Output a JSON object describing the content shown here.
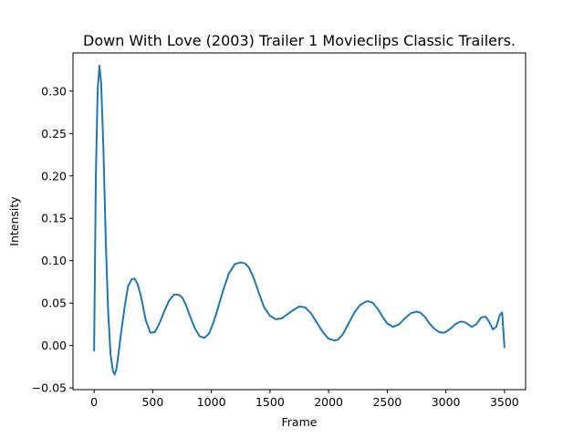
{
  "chart_data": {
    "type": "line",
    "title": "Down With Love (2003) Trailer 1  Movieclips Classic Trailers.",
    "xlabel": "Frame",
    "ylabel": "Intensity",
    "xlim": [
      -180,
      3680
    ],
    "ylim": [
      -0.052,
      0.345
    ],
    "xticks": [
      0,
      500,
      1000,
      1500,
      2000,
      2500,
      3000,
      3500
    ],
    "yticks": [
      -0.05,
      0.0,
      0.05,
      0.1,
      0.15,
      0.2,
      0.25,
      0.3
    ],
    "xtick_labels": [
      "0",
      "500",
      "1000",
      "1500",
      "2000",
      "2500",
      "3000",
      "3500"
    ],
    "ytick_labels": [
      "−0.05",
      "0.00",
      "0.05",
      "0.10",
      "0.15",
      "0.20",
      "0.25",
      "0.30"
    ],
    "grid": false,
    "color": "#1f77b4",
    "series": [
      {
        "x": [
          0,
          15,
          30,
          45,
          60,
          80,
          100,
          120,
          140,
          160,
          175,
          190,
          210,
          230,
          260,
          290,
          320,
          345,
          370,
          400,
          440,
          480,
          520,
          560,
          600,
          640,
          680,
          720,
          750,
          780,
          820,
          860,
          900,
          940,
          980,
          1020,
          1060,
          1100,
          1150,
          1200,
          1250,
          1285,
          1320,
          1360,
          1400,
          1450,
          1500,
          1550,
          1600,
          1650,
          1700,
          1750,
          1800,
          1850,
          1900,
          1950,
          2000,
          2050,
          2080,
          2120,
          2170,
          2220,
          2270,
          2320,
          2350,
          2380,
          2420,
          2460,
          2500,
          2550,
          2600,
          2650,
          2700,
          2750,
          2780,
          2820,
          2860,
          2900,
          2940,
          2980,
          3000,
          3040,
          3080,
          3120,
          3150,
          3180,
          3220,
          3260,
          3300,
          3340,
          3370,
          3400,
          3430,
          3460,
          3480,
          3500
        ],
        "y": [
          -0.006,
          0.2,
          0.3,
          0.33,
          0.31,
          0.23,
          0.12,
          0.04,
          -0.01,
          -0.03,
          -0.034,
          -0.028,
          -0.008,
          0.015,
          0.045,
          0.07,
          0.078,
          0.079,
          0.073,
          0.058,
          0.03,
          0.015,
          0.016,
          0.027,
          0.041,
          0.053,
          0.06,
          0.06,
          0.057,
          0.049,
          0.034,
          0.02,
          0.011,
          0.009,
          0.014,
          0.028,
          0.046,
          0.065,
          0.085,
          0.096,
          0.098,
          0.097,
          0.092,
          0.08,
          0.064,
          0.045,
          0.035,
          0.031,
          0.032,
          0.037,
          0.042,
          0.046,
          0.045,
          0.038,
          0.027,
          0.016,
          0.008,
          0.006,
          0.007,
          0.013,
          0.026,
          0.039,
          0.048,
          0.052,
          0.052,
          0.05,
          0.043,
          0.034,
          0.026,
          0.022,
          0.025,
          0.032,
          0.038,
          0.04,
          0.039,
          0.034,
          0.026,
          0.02,
          0.016,
          0.015,
          0.016,
          0.02,
          0.025,
          0.028,
          0.028,
          0.026,
          0.022,
          0.025,
          0.033,
          0.034,
          0.028,
          0.019,
          0.022,
          0.036,
          0.039,
          -0.002
        ]
      }
    ]
  }
}
